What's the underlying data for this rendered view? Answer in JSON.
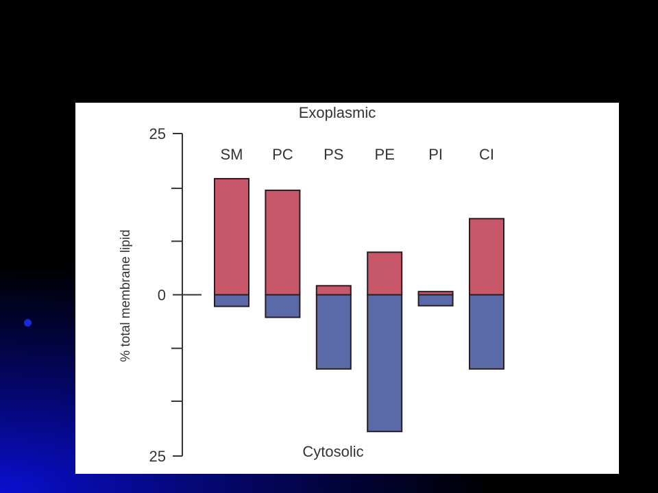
{
  "chart_data": {
    "type": "bar",
    "top_label": "Exoplasmic",
    "bottom_label": "Cytosolic",
    "ylabel": "% total membrane lipid",
    "ylim": [
      -25,
      25
    ],
    "y_ticks": [
      {
        "value": 25,
        "label": "25"
      },
      {
        "value": 0,
        "label": "0"
      },
      {
        "value": -25,
        "label": "25"
      }
    ],
    "y_minor_ticks": [
      16.5,
      8.3,
      -8.3,
      -16.5
    ],
    "categories": [
      "SM",
      "PC",
      "PS",
      "PE",
      "PI",
      "CI"
    ],
    "series": [
      {
        "values": [
          18,
          16.2,
          1.4,
          6.6,
          0.5,
          11.8
        ]
      },
      {
        "values": [
          -1.8,
          -3.5,
          -11.5,
          -21.2,
          -1.7,
          -11.5
        ]
      }
    ],
    "colors": {
      "exoplasmic": "#c8576a",
      "cytosolic": "#5a6aa8",
      "outline": "#2a1a22",
      "axis": "#333333"
    }
  }
}
